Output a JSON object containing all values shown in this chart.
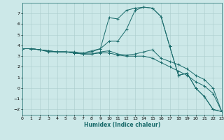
{
  "xlabel": "Humidex (Indice chaleur)",
  "xlim": [
    0,
    23
  ],
  "ylim": [
    -2.5,
    8.0
  ],
  "xticks": [
    0,
    1,
    2,
    3,
    4,
    5,
    6,
    7,
    8,
    9,
    10,
    11,
    12,
    13,
    14,
    15,
    16,
    17,
    18,
    19,
    20,
    21,
    22,
    23
  ],
  "yticks": [
    -2,
    -1,
    0,
    1,
    2,
    3,
    4,
    5,
    6,
    7
  ],
  "bg_color": "#cce8e8",
  "grid_color": "#aacccc",
  "line_color": "#1a6b6b",
  "lines": [
    {
      "x": [
        0,
        1,
        2,
        3,
        4,
        5,
        6,
        7,
        8,
        9,
        10,
        11,
        12,
        13,
        14,
        15,
        16,
        17,
        18,
        19,
        20,
        21,
        22,
        23
      ],
      "y": [
        3.7,
        3.7,
        3.6,
        3.5,
        3.4,
        3.4,
        3.3,
        3.2,
        3.4,
        3.7,
        6.6,
        6.5,
        7.3,
        7.5,
        7.6,
        7.5,
        6.7,
        3.9,
        1.2,
        1.4,
        0.0,
        -0.8,
        -2.0,
        -2.2
      ]
    },
    {
      "x": [
        0,
        1,
        2,
        3,
        4,
        5,
        6,
        7,
        8,
        9,
        10,
        11,
        12,
        13,
        14,
        15,
        16,
        17,
        18,
        19,
        20,
        21,
        22,
        23
      ],
      "y": [
        3.7,
        3.7,
        3.6,
        3.5,
        3.4,
        3.4,
        3.4,
        3.3,
        3.5,
        3.7,
        4.4,
        4.4,
        5.5,
        7.3,
        7.6,
        7.5,
        6.7,
        3.9,
        1.2,
        1.4,
        0.0,
        -0.8,
        -2.0,
        -2.2
      ]
    },
    {
      "x": [
        0,
        1,
        2,
        3,
        4,
        5,
        6,
        7,
        8,
        9,
        10,
        11,
        12,
        13,
        14,
        15,
        16,
        17,
        18,
        19,
        20,
        21,
        22,
        23
      ],
      "y": [
        3.7,
        3.7,
        3.6,
        3.4,
        3.4,
        3.4,
        3.3,
        3.2,
        3.2,
        3.4,
        3.5,
        3.2,
        3.1,
        3.2,
        3.4,
        3.6,
        2.8,
        2.5,
        2.2,
        1.8,
        1.2,
        0.8,
        0.0,
        -2.2
      ]
    },
    {
      "x": [
        0,
        1,
        2,
        3,
        4,
        5,
        6,
        7,
        8,
        9,
        10,
        11,
        12,
        13,
        14,
        15,
        16,
        17,
        18,
        19,
        20,
        21,
        22,
        23
      ],
      "y": [
        3.7,
        3.7,
        3.6,
        3.5,
        3.4,
        3.4,
        3.3,
        3.2,
        3.2,
        3.3,
        3.3,
        3.1,
        3.0,
        3.0,
        3.0,
        2.8,
        2.4,
        2.0,
        1.6,
        1.2,
        0.6,
        0.2,
        -0.5,
        -2.2
      ]
    }
  ]
}
